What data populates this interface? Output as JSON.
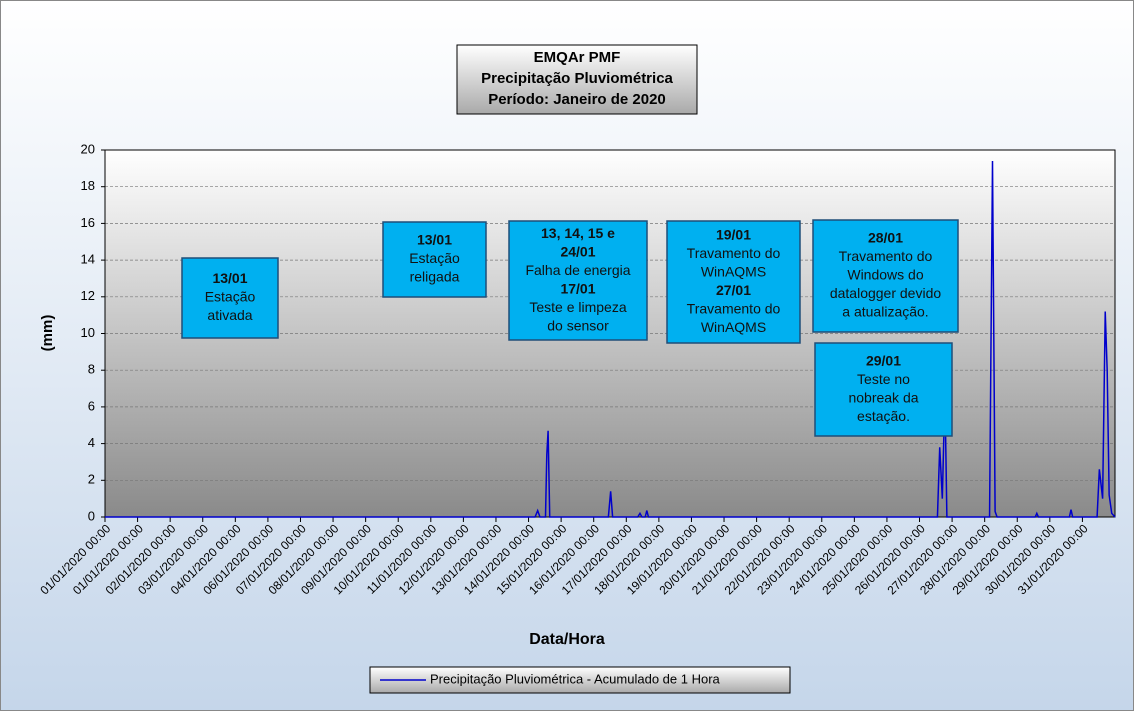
{
  "chart_data": {
    "type": "line",
    "title": [
      "EMQAr PMF",
      "Precipitação Pluviométrica",
      "Período: Janeiro de 2020"
    ],
    "x_label": "Data/Hora",
    "y_label": "(mm)",
    "xlim": [
      0,
      31
    ],
    "xticks": [
      {
        "value": 0,
        "label": "01/01/2020 00:00"
      },
      {
        "value": 1,
        "label": "01/01/2020 00:00"
      },
      {
        "value": 2,
        "label": "02/01/2020 00:00"
      },
      {
        "value": 3,
        "label": "03/01/2020 00:00"
      },
      {
        "value": 4,
        "label": "04/01/2020 00:00"
      },
      {
        "value": 5,
        "label": "06/01/2020 00:00"
      },
      {
        "value": 6,
        "label": "07/01/2020 00:00"
      },
      {
        "value": 7,
        "label": "08/01/2020 00:00"
      },
      {
        "value": 8,
        "label": "09/01/2020 00:00"
      },
      {
        "value": 9,
        "label": "10/01/2020 00:00"
      },
      {
        "value": 10,
        "label": "11/01/2020 00:00"
      },
      {
        "value": 11,
        "label": "12/01/2020 00:00"
      },
      {
        "value": 12,
        "label": "13/01/2020 00:00"
      },
      {
        "value": 13,
        "label": "14/01/2020 00:00"
      },
      {
        "value": 14,
        "label": "15/01/2020 00:00"
      },
      {
        "value": 15,
        "label": "16/01/2020 00:00"
      },
      {
        "value": 16,
        "label": "17/01/2020 00:00"
      },
      {
        "value": 17,
        "label": "18/01/2020 00:00"
      },
      {
        "value": 18,
        "label": "19/01/2020 00:00"
      },
      {
        "value": 19,
        "label": "20/01/2020 00:00"
      },
      {
        "value": 20,
        "label": "21/01/2020 00:00"
      },
      {
        "value": 21,
        "label": "22/01/2020 00:00"
      },
      {
        "value": 22,
        "label": "23/01/2020 00:00"
      },
      {
        "value": 23,
        "label": "24/01/2020 00:00"
      },
      {
        "value": 24,
        "label": "25/01/2020 00:00"
      },
      {
        "value": 25,
        "label": "26/01/2020 00:00"
      },
      {
        "value": 26,
        "label": "27/01/2020 00:00"
      },
      {
        "value": 27,
        "label": "28/01/2020 00:00"
      },
      {
        "value": 28,
        "label": "29/01/2020 00:00"
      },
      {
        "value": 29,
        "label": "30/01/2020 00:00"
      },
      {
        "value": 30,
        "label": "31/01/2020 00:00"
      }
    ],
    "ylim": [
      0,
      20
    ],
    "yticks": [
      0,
      2,
      4,
      6,
      8,
      10,
      12,
      14,
      16,
      18,
      20
    ],
    "grid": true,
    "x": [
      0,
      13.2,
      13.28,
      13.35,
      13.52,
      13.56,
      13.6,
      13.65,
      15.45,
      15.52,
      15.58,
      16.35,
      16.42,
      16.48,
      16.58,
      16.63,
      16.68,
      25.55,
      25.62,
      25.7,
      25.78,
      25.84,
      27.15,
      27.24,
      27.32,
      27.38,
      28.55,
      28.6,
      28.65,
      29.6,
      29.65,
      29.7,
      30.45,
      30.52,
      30.62,
      30.7,
      30.76,
      30.82,
      30.9,
      31
    ],
    "series": [
      {
        "name": "Precipitação Pluviométrica - Acumulado de 1 Hora",
        "color": "#0000cc",
        "values": [
          0,
          0,
          0.35,
          0,
          0,
          3.4,
          4.7,
          0,
          0,
          1.4,
          0,
          0,
          0.2,
          0,
          0,
          0.35,
          0,
          0,
          3.8,
          1.0,
          6.8,
          0,
          0,
          19.4,
          0.3,
          0,
          0,
          0.2,
          0,
          0,
          0.4,
          0,
          0,
          2.6,
          1.0,
          11.2,
          8,
          1.2,
          0.2,
          0
        ]
      }
    ],
    "annotations": [
      [
        {
          "heading": [
            "13/01"
          ],
          "text": [
            "Estação",
            "ativada"
          ]
        }
      ],
      [
        {
          "heading": [
            "13/01"
          ],
          "text": [
            "Estação",
            "religada"
          ]
        }
      ],
      [
        {
          "heading": [
            "13, 14, 15 e",
            "24/01"
          ],
          "text": [
            "Falha de energia"
          ]
        },
        {
          "heading": [
            "17/01"
          ],
          "text": [
            "Teste e limpeza",
            "do sensor"
          ]
        }
      ],
      [
        {
          "heading": [
            "19/01"
          ],
          "text": [
            "Travamento do",
            "WinAQMS"
          ]
        },
        {
          "heading": [
            "27/01"
          ],
          "text": [
            "Travamento do",
            "WinAQMS"
          ]
        }
      ],
      [
        {
          "heading": [
            "28/01"
          ],
          "text": [
            "Travamento do",
            "Windows do",
            "datalogger devido",
            "a atualização."
          ]
        }
      ],
      [
        {
          "heading": [
            "29/01"
          ],
          "text": [
            "Teste no",
            "nobreak da",
            "estação."
          ]
        }
      ]
    ]
  }
}
